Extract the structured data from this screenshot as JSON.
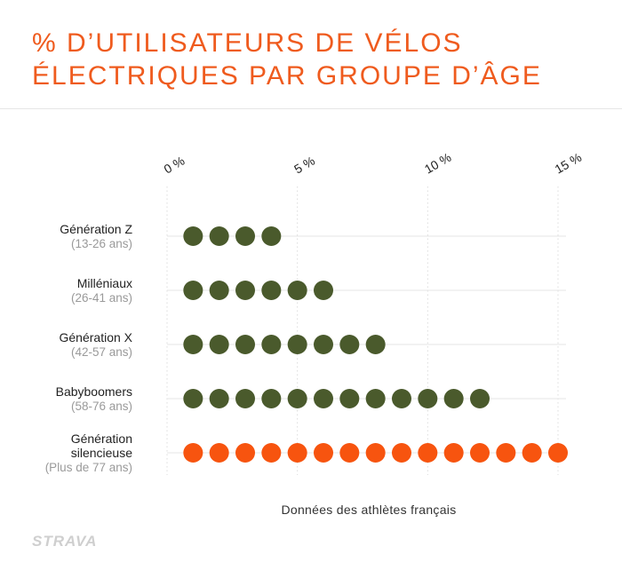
{
  "title": {
    "line1": "% D’UTILISATEURS DE VÉLOS",
    "line2": "ÉLECTRIQUES PAR GROUPE D’ÂGE"
  },
  "chart_data": {
    "type": "dot",
    "title": "% D’UTILISATEURS DE VÉLOS ÉLECTRIQUES PAR GROUPE D’ÂGE",
    "xlabel": "",
    "ylabel": "",
    "x_ticks": [
      "0 %",
      "5 %",
      "10 %",
      "15 %"
    ],
    "xlim": [
      0,
      15
    ],
    "grid": true,
    "unit_per_dot": 1,
    "categories": [
      {
        "name": "Génération Z",
        "range": "(13-26 ans)",
        "value": 4,
        "color": "#4a5a2c"
      },
      {
        "name": "Milléniaux",
        "range": "(26-41 ans)",
        "value": 6,
        "color": "#4a5a2c"
      },
      {
        "name": "Génération X",
        "range": "(42-57 ans)",
        "value": 8,
        "color": "#4a5a2c"
      },
      {
        "name": "Babyboomers",
        "range": "(58-76 ans)",
        "value": 12,
        "color": "#4a5a2c"
      },
      {
        "name": "Génération silencieuse",
        "range": "(Plus de 77 ans)",
        "value": 15,
        "color": "#f7540f"
      }
    ],
    "source": "Données des athlètes français"
  },
  "logo": "STRAVA"
}
